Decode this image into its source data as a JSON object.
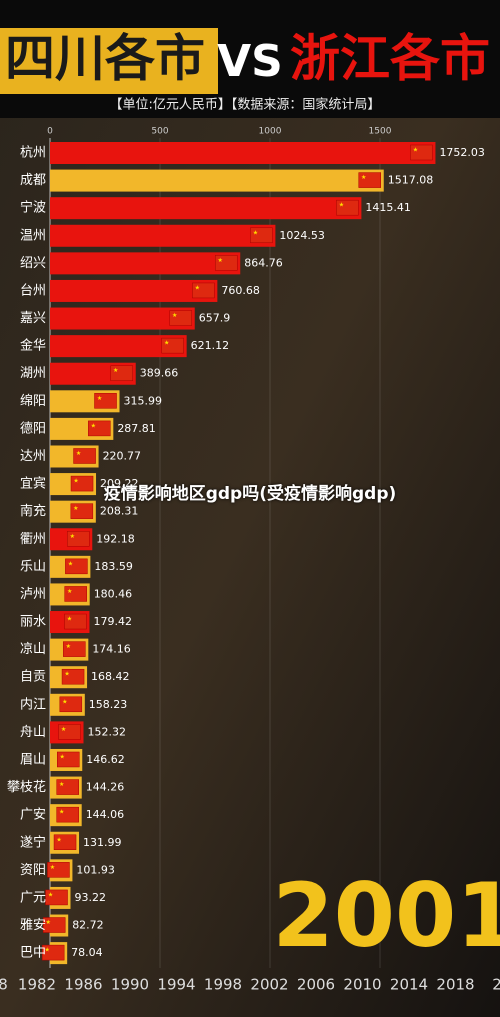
{
  "chart_data": {
    "type": "bar",
    "orientation": "horizontal",
    "title": {
      "left": "四川各市",
      "middle": "VS",
      "right": "浙江各市"
    },
    "subtitle": "【单位:亿元人民币】【数据来源：国家统计局】",
    "categories": [
      "杭州",
      "成都",
      "宁波",
      "温州",
      "绍兴",
      "台州",
      "嘉兴",
      "金华",
      "湖州",
      "绵阳",
      "德阳",
      "达州",
      "宜宾",
      "南充",
      "衢州",
      "乐山",
      "泸州",
      "丽水",
      "凉山",
      "自贡",
      "内江",
      "舟山",
      "眉山",
      "攀枝花",
      "广安",
      "遂宁",
      "资阳",
      "广元",
      "雅安",
      "巴中"
    ],
    "values": [
      1752.03,
      1517.08,
      1415.41,
      1024.53,
      864.76,
      760.68,
      657.9,
      621.12,
      389.66,
      315.99,
      287.81,
      220.77,
      209.22,
      208.31,
      192.18,
      183.59,
      180.46,
      179.42,
      174.16,
      168.42,
      158.23,
      152.32,
      146.62,
      144.26,
      144.06,
      131.99,
      101.93,
      93.22,
      82.72,
      78.04
    ],
    "colors": [
      "#e8140e",
      "#f2b72a",
      "#e8140e",
      "#e8140e",
      "#e8140e",
      "#e8140e",
      "#e8140e",
      "#e8140e",
      "#e8140e",
      "#f2b72a",
      "#f2b72a",
      "#f2b72a",
      "#f2b72a",
      "#f2b72a",
      "#e8140e",
      "#f2b72a",
      "#f2b72a",
      "#e8140e",
      "#f2b72a",
      "#f2b72a",
      "#f2b72a",
      "#e8140e",
      "#f2b72a",
      "#f2b72a",
      "#f2b72a",
      "#f2b72a",
      "#f2b72a",
      "#f2b72a",
      "#f2b72a",
      "#f2b72a"
    ],
    "xlim": [
      0,
      2000
    ],
    "xticks": [
      0,
      500,
      1000,
      1500
    ],
    "year": "2001",
    "timeline": [
      "8",
      "1982",
      "1986",
      "1990",
      "1994",
      "1998",
      "2002",
      "2006",
      "2010",
      "2014",
      "2018",
      "2"
    ]
  },
  "caption": "疫情影响地区gdp吗(受疫情影响gdp)"
}
